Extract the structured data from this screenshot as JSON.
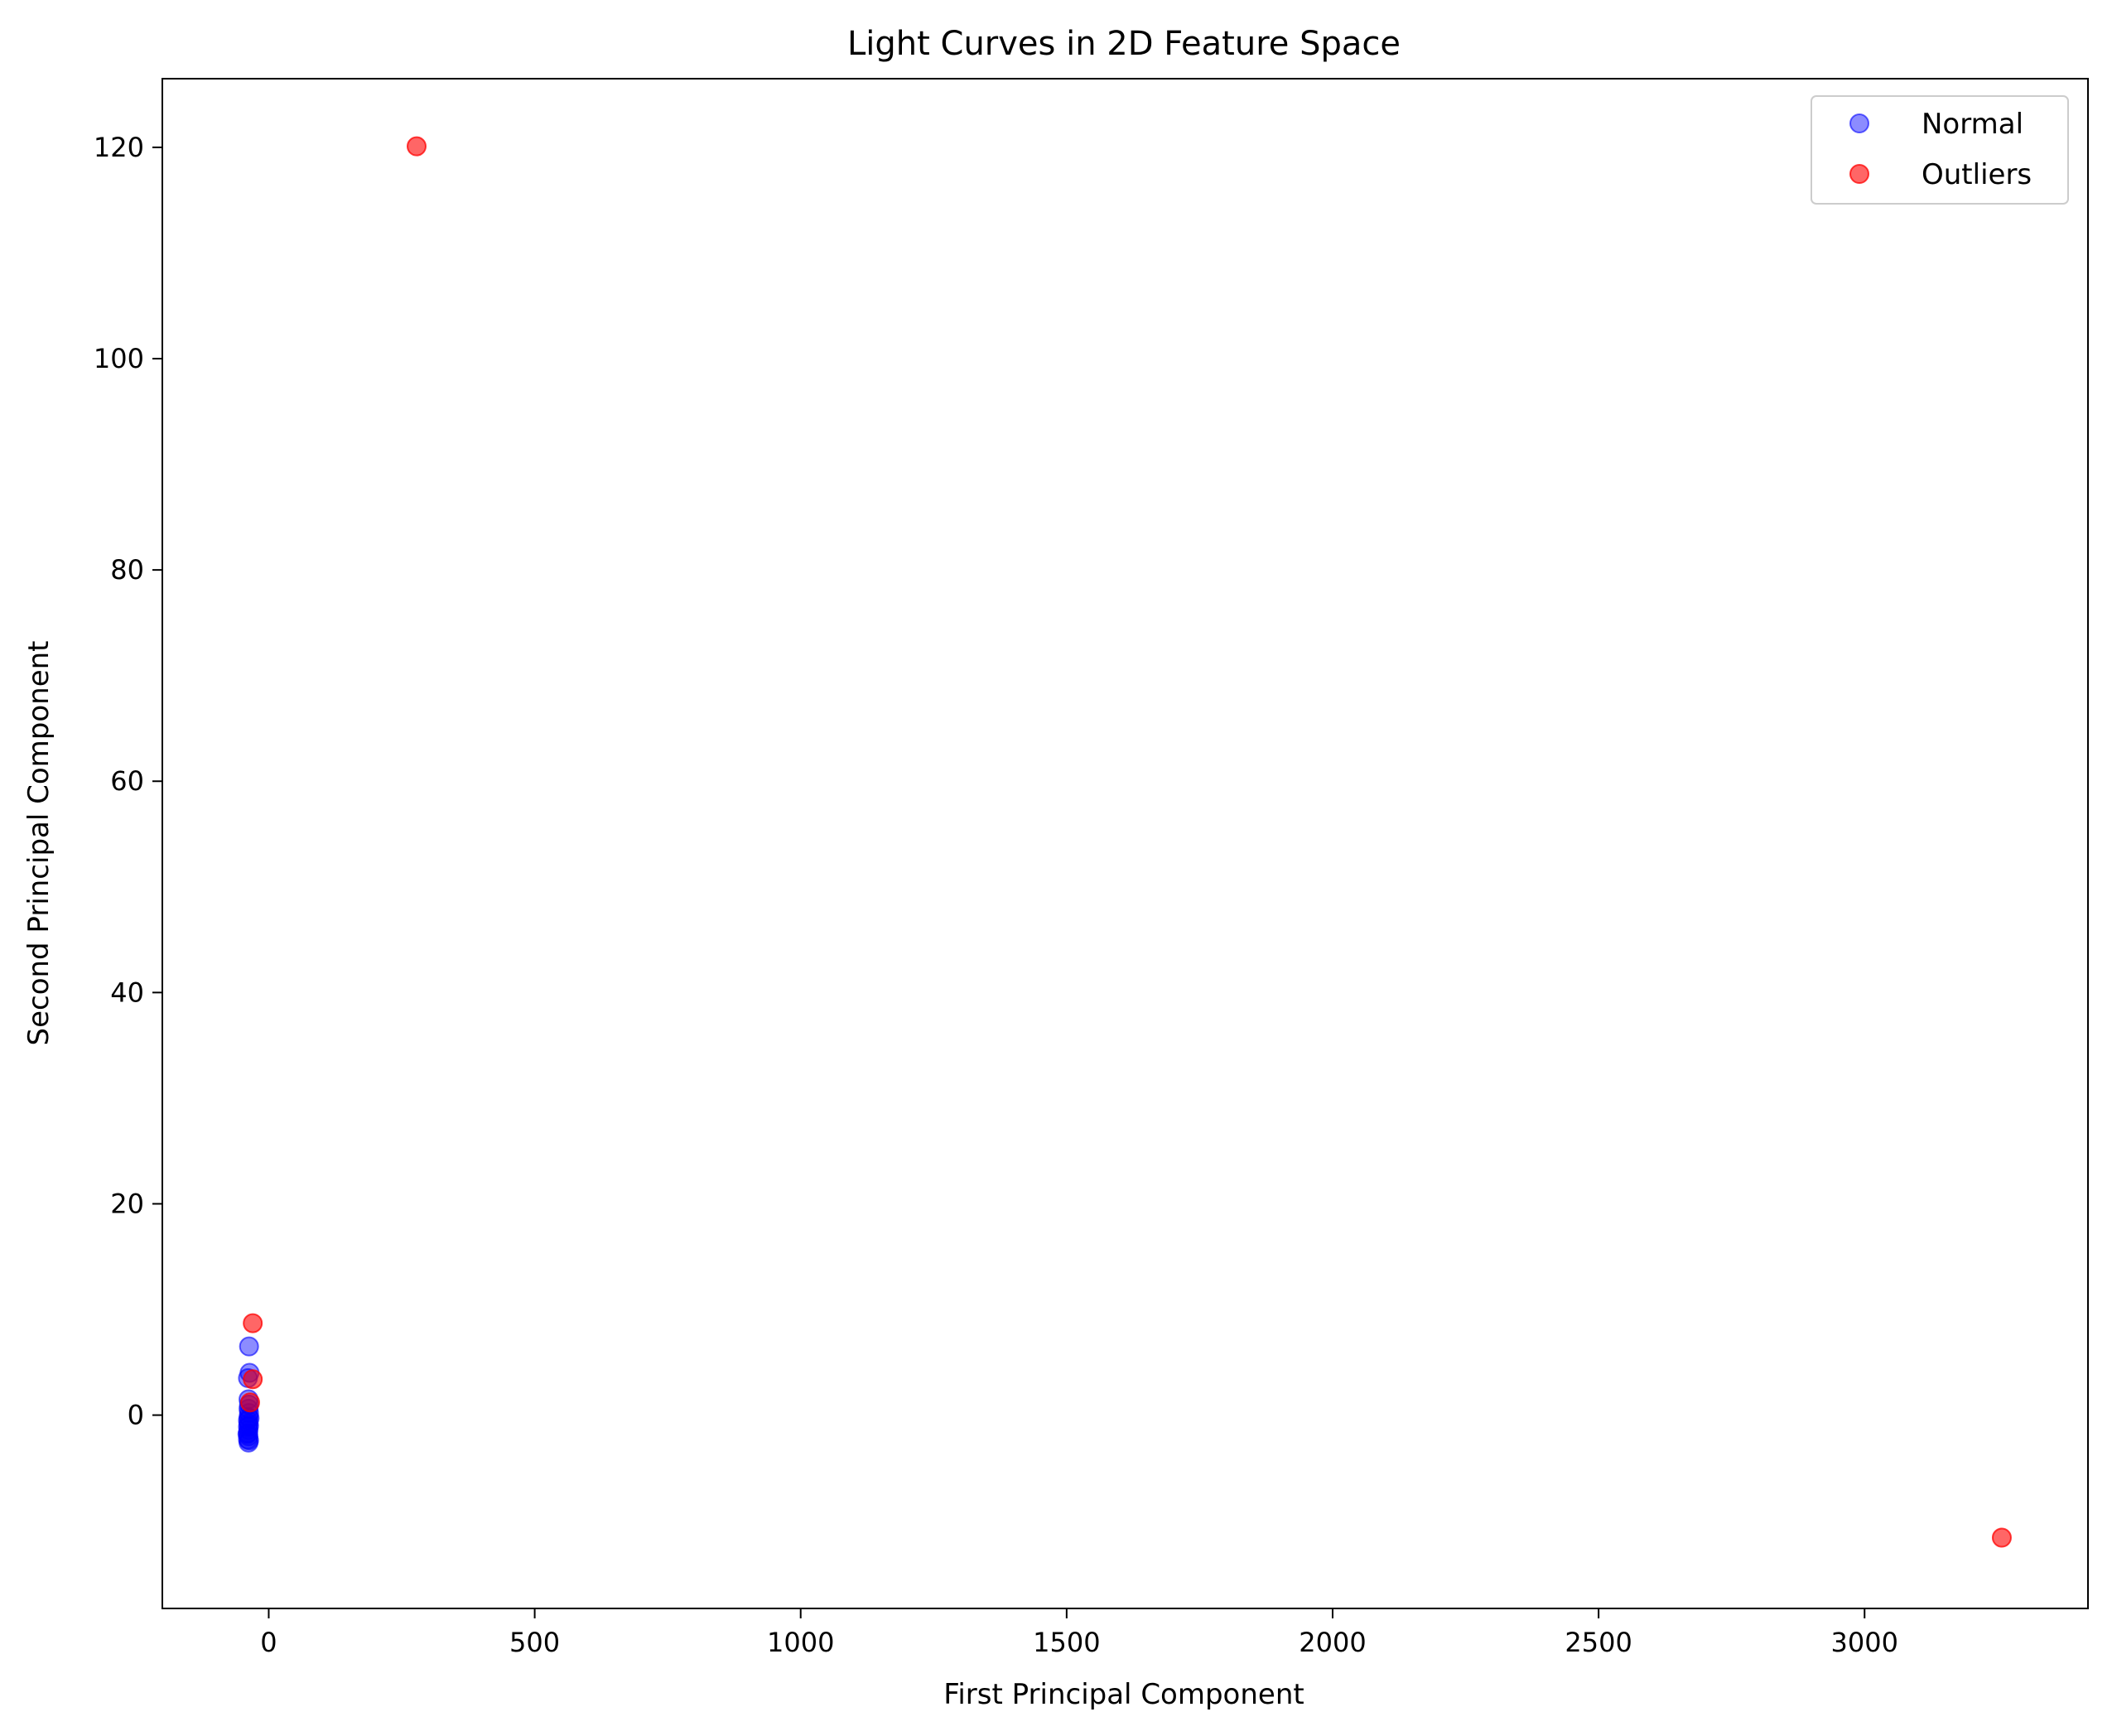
{
  "chart_data": {
    "type": "scatter",
    "title": "Light Curves in 2D Feature Space",
    "xlabel": "First Principal Component",
    "ylabel": "Second Principal Component",
    "xlim": [
      -200,
      3420
    ],
    "ylim": [
      -18.3,
      126.5
    ],
    "xticks": [
      0,
      500,
      1000,
      1500,
      2000,
      2500,
      3000
    ],
    "yticks": [
      0,
      20,
      40,
      60,
      80,
      100,
      120
    ],
    "grid": false,
    "legend_position": "top-right",
    "series": [
      {
        "name": "Normal",
        "color": "#0000ff",
        "alpha": 0.45,
        "points": [
          {
            "x": -37,
            "y": 6.5
          },
          {
            "x": -36,
            "y": 4.0
          },
          {
            "x": -39,
            "y": 3.5
          },
          {
            "x": -38,
            "y": 1.5
          },
          {
            "x": -37,
            "y": 1.0
          },
          {
            "x": -38,
            "y": 0.6
          },
          {
            "x": -37,
            "y": 0.2
          },
          {
            "x": -38,
            "y": -0.2
          },
          {
            "x": -39,
            "y": -0.5
          },
          {
            "x": -38,
            "y": -0.8
          },
          {
            "x": -39,
            "y": -1.1
          },
          {
            "x": -38,
            "y": -1.4
          },
          {
            "x": -39,
            "y": -1.7
          },
          {
            "x": -38,
            "y": -2.0
          },
          {
            "x": -39,
            "y": -2.3
          },
          {
            "x": -38,
            "y": -2.6
          },
          {
            "x": -37,
            "y": -1.0
          },
          {
            "x": -36,
            "y": -0.3
          },
          {
            "x": -40,
            "y": -1.8
          },
          {
            "x": -37,
            "y": -2.4
          }
        ]
      },
      {
        "name": "Outliers",
        "color": "#ff0000",
        "alpha": 0.6,
        "points": [
          {
            "x": 278,
            "y": 120.1
          },
          {
            "x": 3258,
            "y": -11.6
          },
          {
            "x": -30,
            "y": 8.7
          },
          {
            "x": -30,
            "y": 3.4
          },
          {
            "x": -35,
            "y": 1.2
          }
        ]
      }
    ]
  }
}
